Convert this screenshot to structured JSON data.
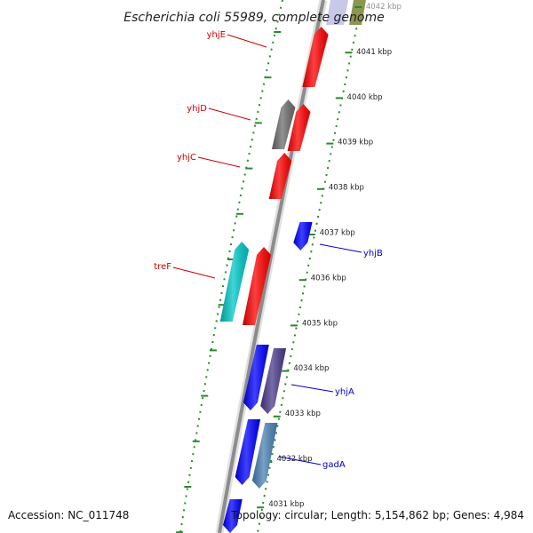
{
  "title": "Escherichia coli 55989, complete genome",
  "footer": {
    "accession": "Accession: NC_011748",
    "topology": "Topology: circular; Length: 5,154,862 bp; Genes: 4,984"
  },
  "scale_labels": [
    "4042 kbp",
    "4041 kbp",
    "4040 kbp",
    "4039 kbp",
    "4038 kbp",
    "4037 kbp",
    "4036 kbp",
    "4035 kbp",
    "4034 kbp",
    "4033 kbp",
    "4032 kbp",
    "4031 kbp"
  ],
  "genes": [
    {
      "name": "yhjE",
      "strand": "reverse",
      "color": "#ff0000"
    },
    {
      "name": "",
      "strand": "reverse",
      "color": "#6e6e6e"
    },
    {
      "name": "yhjD",
      "strand": "reverse",
      "color": "#ff0000"
    },
    {
      "name": "yhjC",
      "strand": "reverse",
      "color": "#ff0000"
    },
    {
      "name": "yhjB",
      "strand": "forward",
      "color": "#0000ff"
    },
    {
      "name": "",
      "strand": "reverse",
      "color": "#00c8c8"
    },
    {
      "name": "treF",
      "strand": "reverse",
      "color": "#ff0000"
    },
    {
      "name": "",
      "strand": "forward",
      "color": "#0000ff"
    },
    {
      "name": "yhjA",
      "strand": "forward",
      "color": "#4b3c8c"
    },
    {
      "name": "",
      "strand": "forward",
      "color": "#0000ff"
    },
    {
      "name": "gadA",
      "strand": "forward",
      "color": "#4a82b4"
    },
    {
      "name": "",
      "strand": "forward",
      "color": "#0000ff"
    }
  ],
  "colors": {
    "backbone": "#8c8c8c",
    "tick": "#2a8a2a",
    "label_reverse": "#cc0000",
    "label_forward": "#0000cc"
  }
}
